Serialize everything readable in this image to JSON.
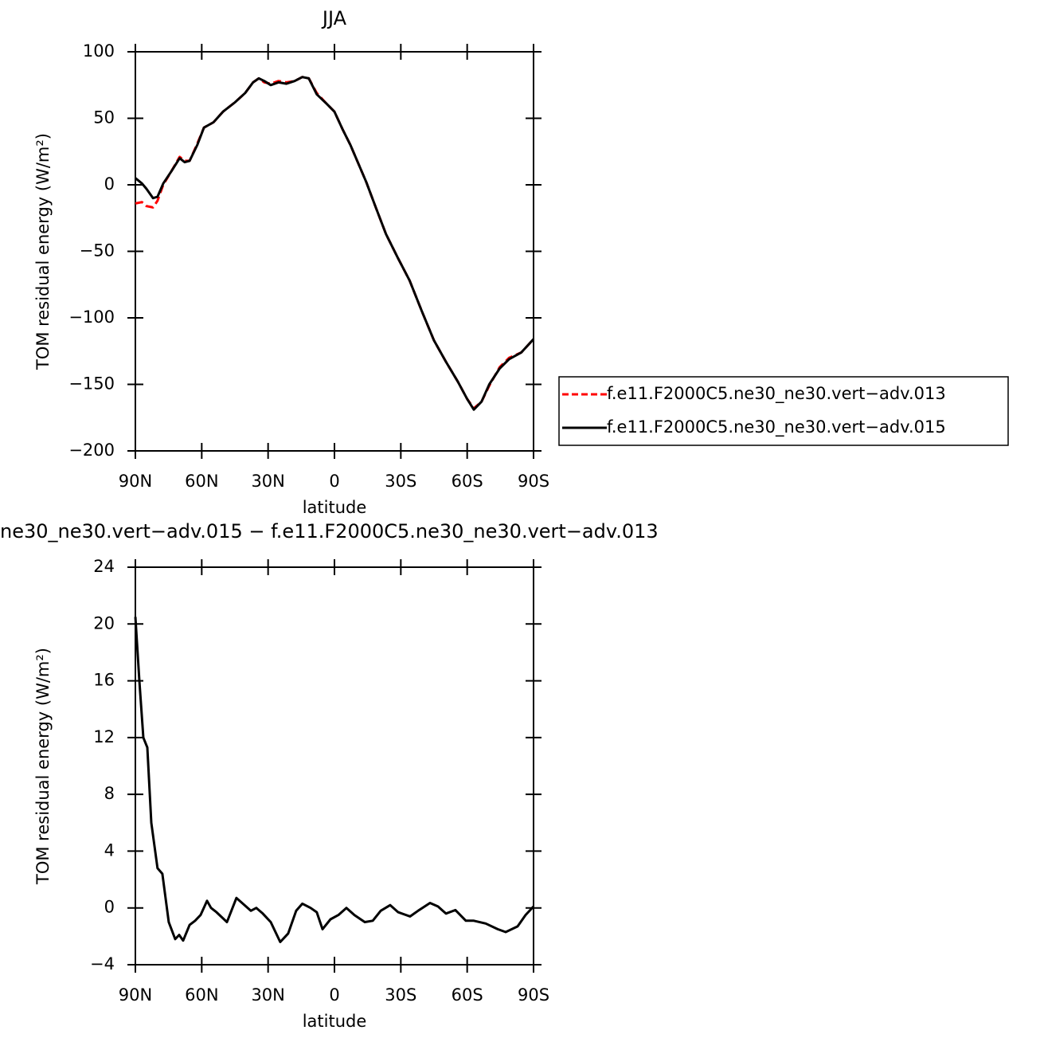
{
  "chart_data": [
    {
      "type": "line",
      "title": "JJA",
      "xlabel": "latitude",
      "ylabel": "TOM residual energy (W/m²)",
      "x": [
        90,
        87,
        85,
        82,
        80,
        77.4,
        73.8,
        70,
        67.7,
        65.5,
        62,
        59,
        54.7,
        50.4,
        45,
        40.4,
        36.8,
        34.2,
        31.7,
        28.8,
        25.3,
        21.7,
        18,
        14.5,
        11.6,
        8,
        3.6,
        0,
        -3.6,
        -7.2,
        -10.8,
        -14.4,
        -18.7,
        -23.3,
        -28.7,
        -34,
        -39.5,
        -45,
        -50.4,
        -55.8,
        -60,
        -63,
        -66.5,
        -70,
        -74.7,
        -79,
        -84.5,
        -90
      ],
      "series": [
        {
          "name": "f.e11.F2000C5.ne30_ne30.vert−adv.013",
          "color": "#ff0000",
          "line_style": "dashed",
          "values": [
            -14,
            -13,
            -16,
            -17,
            -12,
            0,
            10,
            21,
            18,
            18,
            31,
            43,
            47,
            55,
            62,
            69,
            77,
            80,
            77,
            76,
            78,
            77,
            78,
            81,
            80,
            69,
            61,
            55,
            42,
            30,
            16,
            2,
            -17,
            -37,
            -55,
            -72,
            -95,
            -117,
            -133,
            -148,
            -161,
            -168,
            -163,
            -151,
            -137,
            -130,
            -126,
            -116
          ]
        },
        {
          "name": "f.e11.F2000C5.ne30_ne30.vert−adv.015",
          "color": "#000000",
          "line_style": "solid",
          "values": [
            5,
            1,
            -3,
            -10,
            -9,
            1,
            10,
            20,
            17,
            18,
            30,
            43,
            47,
            55,
            62,
            69,
            77,
            80,
            78,
            75,
            77,
            76,
            78,
            81,
            80,
            68,
            61,
            55,
            42,
            30,
            16,
            2,
            -17,
            -37,
            -55,
            -72,
            -95,
            -117,
            -133,
            -148,
            -161,
            -169,
            -163,
            -150,
            -138,
            -131,
            -126,
            -116
          ]
        }
      ],
      "xlim": [
        90,
        -90
      ],
      "xticks": [
        {
          "value": 90,
          "label": "90N"
        },
        {
          "value": 60,
          "label": "60N"
        },
        {
          "value": 30,
          "label": "30N"
        },
        0,
        {
          "value": -30,
          "label": "30S"
        },
        {
          "value": -60,
          "label": "60S"
        },
        {
          "value": -90,
          "label": "90S"
        }
      ],
      "ylim": [
        -200,
        100
      ],
      "yticks": [
        {
          "value": -200,
          "label": "−200"
        },
        {
          "value": -150,
          "label": "−150"
        },
        {
          "value": -100,
          "label": "−100"
        },
        {
          "value": -50,
          "label": "−50"
        },
        0,
        50,
        100
      ]
    },
    {
      "type": "line",
      "title": "ne30_ne30.vert−adv.015 − f.e11.F2000C5.ne30_ne30.vert−adv.013",
      "xlabel": "latitude",
      "ylabel": "TOM residual energy (W/m²)",
      "x": [
        90,
        88.2,
        86.4,
        84.6,
        82.8,
        80,
        77.8,
        74.9,
        72,
        70.2,
        68.4,
        65.5,
        63,
        60.5,
        57.6,
        55.8,
        53.3,
        48.6,
        44.3,
        41.4,
        37.8,
        35.3,
        32.4,
        28.8,
        24.5,
        20.9,
        17.3,
        14.5,
        10.8,
        8,
        5.4,
        1.8,
        -1.8,
        -5.4,
        -9,
        -13.7,
        -17.3,
        -20.9,
        -25.2,
        -28.8,
        -34.2,
        -37.8,
        -43.2,
        -46.8,
        -50.4,
        -54.7,
        -59.4,
        -63,
        -68.4,
        -73.8,
        -77.4,
        -82.8,
        -86.4,
        -90
      ],
      "color": "#000000",
      "values": [
        20.5,
        16,
        12,
        11.3,
        6,
        2.8,
        2.4,
        -1,
        -2.2,
        -1.9,
        -2.3,
        -1.2,
        -0.9,
        -0.5,
        0.5,
        0,
        -0.3,
        -1,
        0.7,
        0.3,
        -0.2,
        0,
        -0.4,
        -1,
        -2.4,
        -1.8,
        -0.2,
        0.3,
        0,
        -0.3,
        -1.5,
        -0.8,
        -0.5,
        0,
        -0.5,
        -1,
        -0.9,
        -0.2,
        0.2,
        -0.3,
        -0.6,
        -0.2,
        0.35,
        0.1,
        -0.4,
        -0.15,
        -0.9,
        -0.9,
        -1.1,
        -1.5,
        -1.7,
        -1.3,
        -0.5,
        0.1
      ],
      "xlim": [
        90,
        -90
      ],
      "xticks": [
        {
          "value": 90,
          "label": "90N"
        },
        {
          "value": 60,
          "label": "60N"
        },
        {
          "value": 30,
          "label": "30N"
        },
        0,
        {
          "value": -30,
          "label": "30S"
        },
        {
          "value": -60,
          "label": "60S"
        },
        {
          "value": -90,
          "label": "90S"
        }
      ],
      "ylim": [
        -4,
        24
      ],
      "yticks": [
        {
          "value": -4,
          "label": "−4"
        },
        0,
        4,
        8,
        12,
        16,
        20,
        24
      ]
    }
  ]
}
